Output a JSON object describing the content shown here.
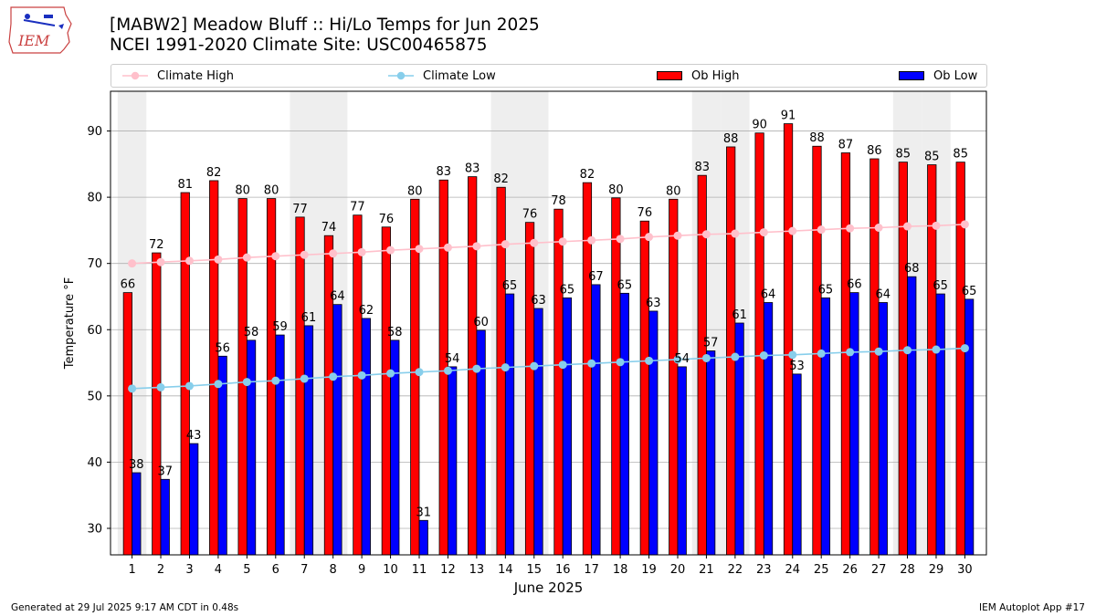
{
  "logo": {
    "text": "IEM"
  },
  "title": {
    "line1": "[MABW2] Meadow Bluff :: Hi/Lo Temps for Jun 2025",
    "line2": "NCEI 1991-2020 Climate Site: USC00465875"
  },
  "legend": {
    "climate_high": "Climate High",
    "climate_low": "Climate Low",
    "ob_high": "Ob High",
    "ob_low": "Ob Low"
  },
  "footer": {
    "generated": "Generated at 29 Jul 2025 9:17 AM CDT in 0.48s",
    "app": "IEM Autoplot App #17"
  },
  "colors": {
    "ob_high": "#ff0000",
    "ob_low": "#0000ff",
    "climate_high": "#ffc0cb",
    "climate_low": "#87ceeb",
    "weekend_band": "#eeeeee",
    "grid": "#b0b0b0"
  },
  "chart_data": {
    "type": "bar",
    "xlabel": "June 2025",
    "ylabel": "Temperature °F",
    "ylim": [
      26,
      96
    ],
    "yticks": [
      30,
      40,
      50,
      60,
      70,
      80,
      90
    ],
    "grid": "horizontal",
    "legend_placement": "top",
    "categories": [
      "1",
      "2",
      "3",
      "4",
      "5",
      "6",
      "7",
      "8",
      "9",
      "10",
      "11",
      "12",
      "13",
      "14",
      "15",
      "16",
      "17",
      "18",
      "19",
      "20",
      "21",
      "22",
      "23",
      "24",
      "25",
      "26",
      "27",
      "28",
      "29",
      "30"
    ],
    "weekend_days": [
      1,
      7,
      8,
      14,
      15,
      21,
      22,
      28,
      29
    ],
    "series": [
      {
        "name": "Ob High",
        "kind": "bar",
        "values": [
          66,
          72,
          81,
          82,
          80,
          80,
          77,
          74,
          77,
          76,
          80,
          83,
          83,
          82,
          76,
          78,
          82,
          80,
          76,
          80,
          83,
          88,
          90,
          91,
          88,
          87,
          86,
          85,
          85,
          85
        ],
        "bar_tops": [
          65.6,
          71.6,
          80.7,
          82.5,
          79.8,
          79.8,
          77.0,
          74.2,
          77.3,
          75.5,
          79.7,
          82.6,
          83.1,
          81.5,
          76.2,
          78.2,
          82.2,
          79.9,
          76.4,
          79.7,
          83.3,
          87.6,
          89.7,
          91.1,
          87.7,
          86.7,
          85.8,
          85.3,
          84.9,
          85.3
        ],
        "labels": [
          "66",
          "72",
          "81",
          "82",
          "80",
          "80",
          "77",
          "74",
          "77",
          "76",
          "80",
          "83",
          "83",
          "82",
          "76",
          "78",
          "82",
          "80",
          "76",
          "80",
          "83",
          "88",
          "90",
          "91",
          "88",
          "87",
          "86",
          "85",
          "85",
          "85"
        ]
      },
      {
        "name": "Ob Low",
        "kind": "bar",
        "values": [
          38,
          37,
          43,
          56,
          58,
          59,
          61,
          64,
          62,
          58,
          31,
          54,
          60,
          65,
          63,
          65,
          67,
          65,
          63,
          54,
          57,
          61,
          64,
          53,
          65,
          66,
          64,
          68,
          65,
          65
        ],
        "bar_tops": [
          38.4,
          37.4,
          42.8,
          56.0,
          58.4,
          59.2,
          60.6,
          63.8,
          61.7,
          58.4,
          31.2,
          54.4,
          59.9,
          65.4,
          63.2,
          64.8,
          66.8,
          65.5,
          62.8,
          54.4,
          56.8,
          61.0,
          64.1,
          53.3,
          64.8,
          65.6,
          64.1,
          68.0,
          65.4,
          64.6
        ],
        "labels": [
          "38",
          "37",
          "43",
          "56",
          "58",
          "59",
          "61",
          "64",
          "62",
          "58",
          "31",
          "54",
          "60",
          "65",
          "63",
          "65",
          "67",
          "65",
          "63",
          "54",
          "57",
          "61",
          "64",
          "53",
          "65",
          "66",
          "64",
          "68",
          "65",
          "65"
        ]
      },
      {
        "name": "Climate High",
        "kind": "line",
        "values": [
          70.0,
          70.2,
          70.4,
          70.6,
          70.9,
          71.1,
          71.3,
          71.5,
          71.7,
          72.0,
          72.2,
          72.4,
          72.6,
          72.9,
          73.1,
          73.3,
          73.5,
          73.7,
          74.0,
          74.2,
          74.4,
          74.5,
          74.7,
          74.9,
          75.1,
          75.3,
          75.4,
          75.6,
          75.7,
          75.9
        ]
      },
      {
        "name": "Climate Low",
        "kind": "line",
        "values": [
          51.1,
          51.3,
          51.5,
          51.8,
          52.1,
          52.3,
          52.6,
          52.9,
          53.1,
          53.4,
          53.6,
          53.8,
          54.1,
          54.3,
          54.5,
          54.7,
          54.9,
          55.1,
          55.3,
          55.5,
          55.7,
          55.9,
          56.1,
          56.2,
          56.4,
          56.6,
          56.7,
          56.9,
          57.0,
          57.2
        ]
      }
    ]
  }
}
